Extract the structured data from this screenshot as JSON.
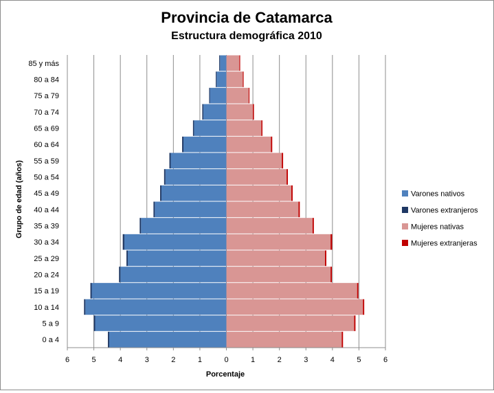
{
  "chart_data": {
    "type": "bar",
    "orientation": "horizontal-population-pyramid",
    "title": "Provincia de Catamarca",
    "subtitle": "Estructura demográfica 2010",
    "xlabel": "Porcentaje",
    "ylabel": "Grupo de edad (años)",
    "xlim": [
      -6,
      6
    ],
    "x_ticks": [
      "6",
      "5",
      "4",
      "3",
      "2",
      "1",
      "0",
      "1",
      "2",
      "3",
      "4",
      "5",
      "6"
    ],
    "grid": "vertical",
    "legend_position": "right",
    "categories": [
      "0 a 4",
      "5 a 9",
      "10 a 14",
      "15 a 19",
      "20 a 24",
      "25 a 29",
      "30 a 34",
      "35 a 39",
      "40 a 44",
      "45 a 49",
      "50 a 54",
      "55 a 59",
      "60 a 64",
      "65 a 69",
      "70 a 74",
      "75 a 79",
      "80 a 84",
      "85 y más"
    ],
    "series": [
      {
        "name": "Varones nativos",
        "side": "left",
        "color": "#4f81bd",
        "values": [
          4.42,
          4.95,
          5.32,
          5.08,
          4.0,
          3.72,
          3.85,
          3.22,
          2.7,
          2.45,
          2.3,
          2.1,
          1.62,
          1.22,
          0.87,
          0.62,
          0.37,
          0.24
        ]
      },
      {
        "name": "Varones extranjeros",
        "side": "left",
        "color": "#1f3864",
        "values": [
          0.05,
          0.05,
          0.05,
          0.05,
          0.05,
          0.05,
          0.06,
          0.05,
          0.05,
          0.05,
          0.05,
          0.05,
          0.05,
          0.04,
          0.04,
          0.03,
          0.03,
          0.03
        ]
      },
      {
        "name": "Mujeres nativas",
        "side": "right",
        "color": "#d99694",
        "values": [
          4.35,
          4.82,
          5.15,
          4.93,
          3.93,
          3.72,
          3.93,
          3.25,
          2.72,
          2.45,
          2.27,
          2.09,
          1.68,
          1.32,
          1.0,
          0.84,
          0.62,
          0.49
        ]
      },
      {
        "name": "Mujeres extranjeras",
        "side": "right",
        "color": "#c00000",
        "values": [
          0.05,
          0.05,
          0.05,
          0.05,
          0.05,
          0.05,
          0.06,
          0.05,
          0.05,
          0.05,
          0.05,
          0.05,
          0.05,
          0.04,
          0.04,
          0.03,
          0.03,
          0.03
        ]
      }
    ]
  }
}
